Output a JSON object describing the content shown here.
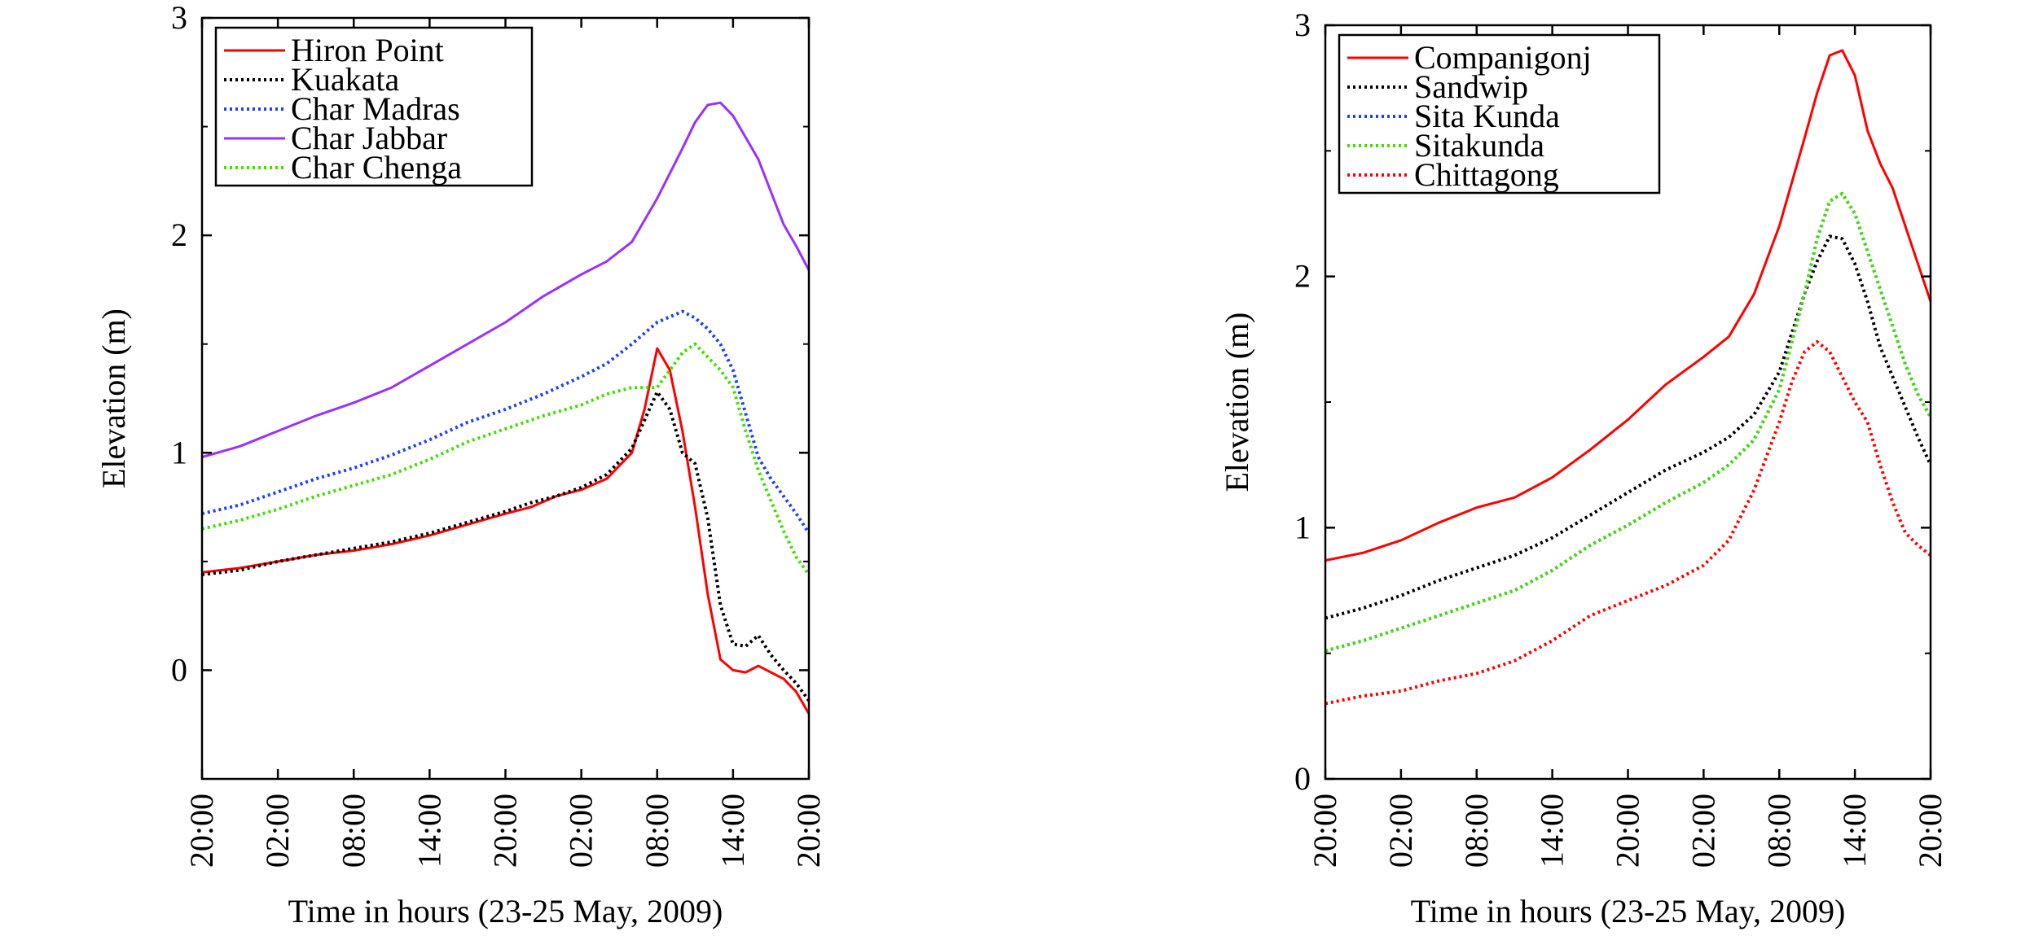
{
  "chart_data": [
    {
      "type": "line",
      "xlabel": "Time in hours (23-25 May, 2009)",
      "ylabel": "Elevation (m)",
      "xlim": [
        0,
        48
      ],
      "ylim": [
        -0.5,
        3
      ],
      "x_ticks": [
        0,
        6,
        12,
        18,
        24,
        30,
        36,
        42,
        48
      ],
      "x_tick_labels": [
        "20:00",
        "02:00",
        "08:00",
        "14:00",
        "20:00",
        "02:00",
        "08:00",
        "14:00",
        "20:00"
      ],
      "y_ticks": [
        0,
        1,
        2,
        3
      ],
      "y_tick_labels": [
        "0",
        "1",
        "2",
        "3"
      ],
      "legend_position": "top-left",
      "grid": false,
      "series": [
        {
          "name": "Hiron Point",
          "color": "#ff0000",
          "style": "solid",
          "x": [
            0,
            3,
            6,
            9,
            12,
            15,
            18,
            21,
            24,
            26,
            28,
            30,
            32,
            34,
            35,
            36,
            37,
            38,
            39,
            40,
            41,
            42,
            43,
            44,
            45,
            46,
            47,
            48
          ],
          "values": [
            0.45,
            0.47,
            0.5,
            0.53,
            0.55,
            0.58,
            0.62,
            0.67,
            0.72,
            0.75,
            0.8,
            0.83,
            0.88,
            1.0,
            1.2,
            1.48,
            1.38,
            1.1,
            0.75,
            0.35,
            0.05,
            0.0,
            -0.01,
            0.02,
            -0.01,
            -0.04,
            -0.1,
            -0.2
          ]
        },
        {
          "name": "Kuakata",
          "color": "#000000",
          "style": "dotted",
          "x": [
            0,
            3,
            6,
            9,
            12,
            15,
            18,
            21,
            24,
            26,
            28,
            30,
            32,
            34,
            35,
            36,
            37,
            38,
            39,
            40,
            41,
            42,
            43,
            44,
            45,
            46,
            47,
            48
          ],
          "values": [
            0.44,
            0.46,
            0.5,
            0.53,
            0.56,
            0.59,
            0.63,
            0.68,
            0.73,
            0.77,
            0.8,
            0.84,
            0.9,
            1.02,
            1.15,
            1.28,
            1.2,
            1.0,
            0.95,
            0.7,
            0.3,
            0.12,
            0.11,
            0.16,
            0.07,
            0.0,
            -0.06,
            -0.14
          ]
        },
        {
          "name": "Char Madras",
          "color": "#1f3fff",
          "style": "dotted",
          "x": [
            0,
            3,
            6,
            9,
            12,
            15,
            18,
            21,
            24,
            27,
            30,
            32,
            34,
            36,
            38,
            39,
            40,
            41,
            42,
            43,
            44,
            45,
            46,
            47,
            48
          ],
          "values": [
            0.72,
            0.76,
            0.82,
            0.88,
            0.93,
            0.99,
            1.06,
            1.14,
            1.2,
            1.27,
            1.35,
            1.41,
            1.5,
            1.6,
            1.65,
            1.62,
            1.57,
            1.5,
            1.38,
            1.18,
            0.98,
            0.88,
            0.8,
            0.72,
            0.63
          ]
        },
        {
          "name": "Char Jabbar",
          "color": "#9b30ff",
          "style": "solid",
          "x": [
            0,
            3,
            6,
            9,
            12,
            15,
            18,
            21,
            24,
            27,
            30,
            32,
            34,
            36,
            38,
            39,
            40,
            41,
            42,
            43,
            44,
            45,
            46,
            47,
            48
          ],
          "values": [
            0.98,
            1.03,
            1.1,
            1.17,
            1.23,
            1.3,
            1.4,
            1.5,
            1.6,
            1.72,
            1.82,
            1.88,
            1.97,
            2.17,
            2.4,
            2.52,
            2.6,
            2.61,
            2.55,
            2.45,
            2.35,
            2.2,
            2.05,
            1.95,
            1.84
          ]
        },
        {
          "name": "Char Chenga",
          "color": "#44dd00",
          "style": "dotted",
          "x": [
            0,
            3,
            6,
            9,
            12,
            15,
            18,
            21,
            24,
            27,
            30,
            32,
            34,
            36,
            38,
            39,
            40,
            41,
            42,
            43,
            44,
            45,
            46,
            47,
            48
          ],
          "values": [
            0.65,
            0.69,
            0.74,
            0.8,
            0.85,
            0.9,
            0.97,
            1.05,
            1.11,
            1.17,
            1.22,
            1.27,
            1.3,
            1.3,
            1.46,
            1.5,
            1.44,
            1.38,
            1.3,
            1.1,
            0.92,
            0.78,
            0.64,
            0.52,
            0.44
          ]
        }
      ]
    },
    {
      "type": "line",
      "xlabel": "Time in hours (23-25 May, 2009)",
      "ylabel": "Elevation (m)",
      "xlim": [
        0,
        48
      ],
      "ylim": [
        0,
        3
      ],
      "x_ticks": [
        0,
        6,
        12,
        18,
        24,
        30,
        36,
        42,
        48
      ],
      "x_tick_labels": [
        "20:00",
        "02:00",
        "08:00",
        "14:00",
        "20:00",
        "02:00",
        "08:00",
        "14:00",
        "20:00"
      ],
      "y_ticks": [
        0,
        1,
        2,
        3
      ],
      "y_tick_labels": [
        "0",
        "1",
        "2",
        "3"
      ],
      "legend_position": "top-left",
      "grid": false,
      "series": [
        {
          "name": "Companigonj",
          "color": "#ff0000",
          "style": "solid",
          "x": [
            0,
            3,
            6,
            9,
            12,
            15,
            18,
            21,
            24,
            27,
            30,
            32,
            34,
            36,
            38,
            39,
            40,
            41,
            42,
            43,
            44,
            45,
            46,
            47,
            48
          ],
          "values": [
            0.87,
            0.9,
            0.95,
            1.02,
            1.08,
            1.12,
            1.2,
            1.31,
            1.43,
            1.57,
            1.68,
            1.76,
            1.93,
            2.2,
            2.55,
            2.73,
            2.88,
            2.9,
            2.8,
            2.58,
            2.45,
            2.35,
            2.2,
            2.05,
            1.9
          ]
        },
        {
          "name": "Sandwip",
          "color": "#000000",
          "style": "dotted",
          "x": [
            0,
            3,
            6,
            9,
            12,
            15,
            18,
            21,
            24,
            27,
            30,
            32,
            34,
            36,
            38,
            39,
            40,
            41,
            42,
            43,
            44,
            45,
            46,
            47,
            48
          ],
          "values": [
            0.64,
            0.68,
            0.73,
            0.79,
            0.84,
            0.89,
            0.96,
            1.05,
            1.14,
            1.23,
            1.3,
            1.36,
            1.45,
            1.62,
            1.93,
            2.06,
            2.16,
            2.15,
            2.05,
            1.9,
            1.72,
            1.6,
            1.48,
            1.36,
            1.25
          ]
        },
        {
          "name": "Sita Kunda",
          "color": "#1f3fff",
          "style": "dotted",
          "x": [
            0,
            3,
            6,
            9,
            12,
            15,
            18,
            21,
            24,
            27,
            30,
            32,
            34,
            36,
            38,
            39,
            40,
            41,
            42,
            43,
            44,
            45,
            46,
            47,
            48
          ],
          "values": [
            0.51,
            0.55,
            0.6,
            0.65,
            0.7,
            0.75,
            0.83,
            0.93,
            1.01,
            1.1,
            1.18,
            1.25,
            1.35,
            1.55,
            1.93,
            2.15,
            2.3,
            2.33,
            2.25,
            2.1,
            1.95,
            1.8,
            1.65,
            1.53,
            1.44
          ]
        },
        {
          "name": "Sitakunda",
          "color": "#44dd00",
          "style": "dotted",
          "x": [
            0,
            3,
            6,
            9,
            12,
            15,
            18,
            21,
            24,
            27,
            30,
            32,
            34,
            36,
            38,
            39,
            40,
            41,
            42,
            43,
            44,
            45,
            46,
            47,
            48
          ],
          "values": [
            0.51,
            0.55,
            0.6,
            0.65,
            0.7,
            0.75,
            0.83,
            0.93,
            1.01,
            1.1,
            1.18,
            1.25,
            1.35,
            1.55,
            1.93,
            2.15,
            2.3,
            2.33,
            2.25,
            2.1,
            1.95,
            1.8,
            1.65,
            1.53,
            1.44
          ]
        },
        {
          "name": "Chittagong",
          "color": "#ff0000",
          "style": "dotted",
          "x": [
            0,
            3,
            6,
            9,
            12,
            15,
            18,
            21,
            24,
            27,
            30,
            32,
            34,
            36,
            37,
            38,
            39,
            40,
            41,
            42,
            43,
            44,
            45,
            46,
            47,
            48
          ],
          "values": [
            0.3,
            0.33,
            0.35,
            0.39,
            0.42,
            0.47,
            0.55,
            0.65,
            0.71,
            0.77,
            0.85,
            0.95,
            1.15,
            1.42,
            1.58,
            1.7,
            1.74,
            1.7,
            1.6,
            1.5,
            1.42,
            1.25,
            1.1,
            0.98,
            0.93,
            0.89
          ]
        }
      ]
    }
  ]
}
